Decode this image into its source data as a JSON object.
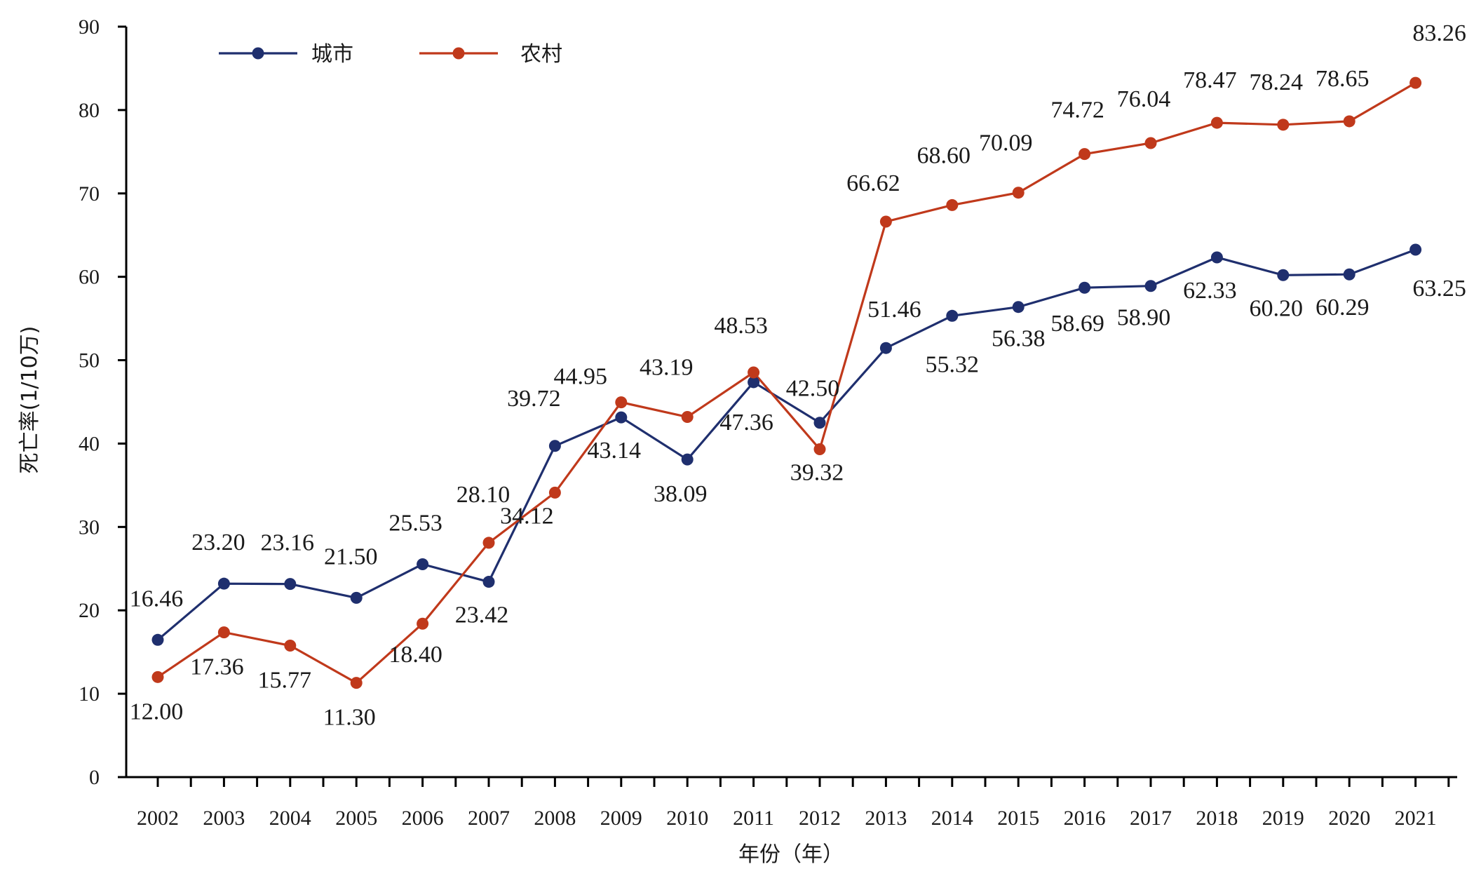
{
  "chart_data": {
    "type": "line",
    "x": [
      "2002",
      "2003",
      "2004",
      "2005",
      "2006",
      "2007",
      "2008",
      "2009",
      "2010",
      "2011",
      "2012",
      "2013",
      "2014",
      "2015",
      "2016",
      "2017",
      "2018",
      "2019",
      "2020",
      "2021"
    ],
    "series": [
      {
        "name": "城市",
        "color": "#1f2f6e",
        "values": [
          16.46,
          23.2,
          23.16,
          21.5,
          25.53,
          23.42,
          39.72,
          43.14,
          38.09,
          47.36,
          42.5,
          51.46,
          55.32,
          56.38,
          58.69,
          58.9,
          62.33,
          60.2,
          60.29,
          63.25
        ],
        "labels": [
          "16.46",
          "23.20",
          "23.16",
          "21.50",
          "25.53",
          "23.42",
          "39.72",
          "43.14",
          "38.09",
          "47.36",
          "42.50",
          "51.46",
          "55.32",
          "56.38",
          "58.69",
          "58.90",
          "62.33",
          "60.20",
          "60.29",
          "63.25"
        ]
      },
      {
        "name": "农村",
        "color": "#c0391b",
        "values": [
          12.0,
          17.36,
          15.77,
          11.3,
          18.4,
          28.1,
          34.12,
          44.95,
          43.19,
          48.53,
          39.32,
          66.62,
          68.6,
          70.09,
          74.72,
          76.04,
          78.47,
          78.24,
          78.65,
          83.26
        ],
        "labels": [
          "12.00",
          "17.36",
          "15.77",
          "11.30",
          "18.40",
          "28.10",
          "34.12",
          "44.95",
          "43.19",
          "48.53",
          "39.32",
          "66.62",
          "68.60",
          "70.09",
          "74.72",
          "76.04",
          "78.47",
          "78.24",
          "78.65",
          "83.26"
        ]
      }
    ],
    "xlabel": "年份（年）",
    "ylabel": "死亡率(1/10万)",
    "ylim": [
      0,
      90
    ],
    "yticks": [
      "0",
      "10",
      "20",
      "30",
      "40",
      "50",
      "60",
      "70",
      "80",
      "90"
    ],
    "grid": false,
    "legend": "top-left"
  }
}
